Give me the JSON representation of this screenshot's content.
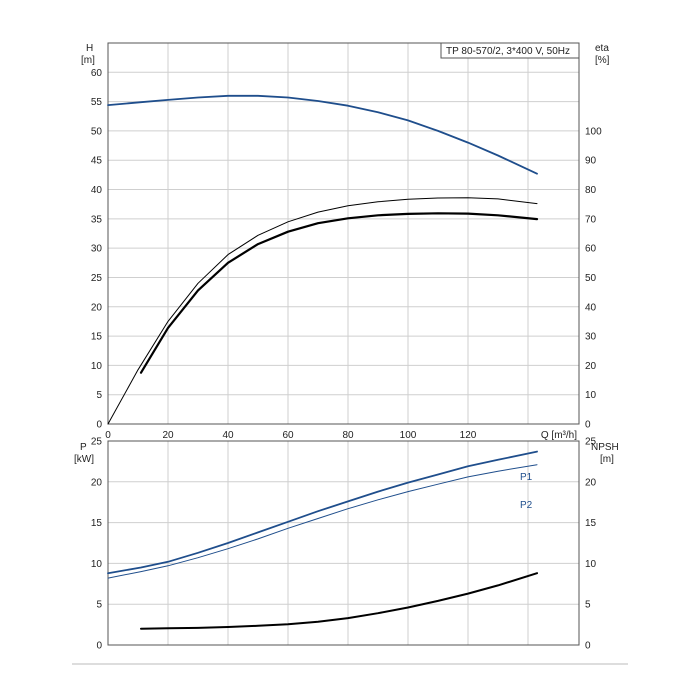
{
  "chart_data": [
    {
      "type": "line",
      "title_box": "TP 80-570/2, 3*400 V, 50Hz",
      "xlabel": "Q [m³/h]",
      "xlim": [
        0,
        157
      ],
      "x_ticks": [
        0,
        20,
        40,
        60,
        80,
        100,
        120
      ],
      "ylabel_left": "H",
      "ylabel_left_unit": "[m]",
      "ylim_left": [
        0,
        65
      ],
      "y_ticks_left": [
        0,
        5,
        10,
        15,
        20,
        25,
        30,
        35,
        40,
        45,
        50,
        55,
        60
      ],
      "ylabel_right": "eta",
      "ylabel_right_unit": "[%]",
      "ylim_right": [
        0,
        130
      ],
      "y_ticks_right": [
        0,
        10,
        20,
        30,
        40,
        50,
        60,
        70,
        80,
        90,
        100
      ],
      "grid": true,
      "colors": {
        "head": "#1f4e8c",
        "efficiency": "#000000"
      },
      "series": [
        {
          "axis": "left",
          "style": "head",
          "x": [
            0,
            11,
            20,
            30,
            40,
            50,
            60,
            70,
            80,
            90,
            100,
            110,
            120,
            130,
            143
          ],
          "y": [
            54.4,
            54.9,
            55.3,
            55.7,
            56.0,
            56.0,
            55.7,
            55.1,
            54.3,
            53.2,
            51.8,
            50.0,
            48.0,
            45.8,
            42.7
          ]
        },
        {
          "axis": "right",
          "style": "efficiency-thin",
          "x": [
            0,
            10,
            20,
            30,
            40,
            50,
            60,
            70,
            80,
            90,
            100,
            110,
            120,
            130,
            143
          ],
          "y": [
            0,
            18.5,
            35.0,
            48.0,
            57.8,
            64.4,
            69.0,
            72.3,
            74.5,
            75.8,
            76.7,
            77.1,
            77.2,
            76.8,
            75.2
          ]
        },
        {
          "axis": "right",
          "style": "efficiency-thick",
          "x": [
            11,
            20,
            30,
            40,
            50,
            60,
            70,
            80,
            90,
            100,
            110,
            120,
            130,
            143
          ],
          "y": [
            17.5,
            32.8,
            45.6,
            55.0,
            61.4,
            65.6,
            68.5,
            70.2,
            71.2,
            71.7,
            71.9,
            71.8,
            71.2,
            69.9
          ]
        }
      ]
    },
    {
      "type": "line",
      "xlim": [
        0,
        157
      ],
      "ylabel_left": "P",
      "ylabel_left_unit": "[kW]",
      "ylim_left": [
        0,
        25
      ],
      "y_ticks_left": [
        0,
        5,
        10,
        15,
        20,
        25
      ],
      "ylabel_right": "NPSH",
      "ylabel_right_unit": "[m]",
      "ylim_right": [
        0,
        25
      ],
      "y_ticks_right": [
        0,
        5,
        10,
        15,
        20,
        25
      ],
      "grid": true,
      "colors": {
        "p1": "#1f4e8c",
        "p2": "#1f4e8c",
        "npsh": "#000000"
      },
      "series": [
        {
          "name": "P1",
          "axis": "left",
          "style": "p1",
          "x": [
            0,
            11,
            20,
            30,
            40,
            50,
            60,
            70,
            80,
            90,
            100,
            110,
            120,
            130,
            143
          ],
          "y": [
            8.8,
            9.5,
            10.2,
            11.3,
            12.5,
            13.8,
            15.1,
            16.4,
            17.6,
            18.8,
            19.9,
            20.9,
            21.9,
            22.7,
            23.7
          ]
        },
        {
          "name": "P2",
          "axis": "left",
          "style": "p2",
          "x": [
            0,
            11,
            20,
            30,
            40,
            50,
            60,
            70,
            80,
            90,
            100,
            110,
            120,
            130,
            143
          ],
          "y": [
            8.2,
            9.0,
            9.7,
            10.7,
            11.8,
            13.0,
            14.3,
            15.5,
            16.7,
            17.8,
            18.8,
            19.7,
            20.6,
            21.3,
            22.1
          ]
        },
        {
          "axis": "right",
          "style": "npsh",
          "x": [
            11,
            20,
            30,
            40,
            50,
            60,
            70,
            80,
            90,
            100,
            110,
            120,
            130,
            143
          ],
          "y": [
            2.0,
            2.05,
            2.1,
            2.2,
            2.35,
            2.55,
            2.85,
            3.3,
            3.9,
            4.6,
            5.4,
            6.3,
            7.3,
            8.8
          ]
        }
      ]
    }
  ]
}
